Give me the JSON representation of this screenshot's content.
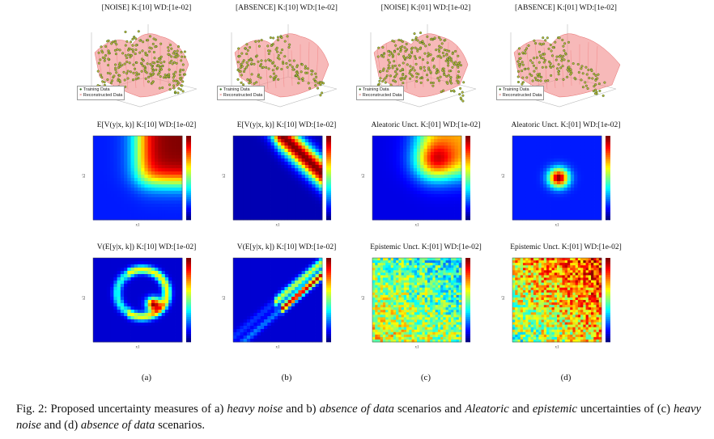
{
  "columns": [
    {
      "id": "a",
      "titles": [
        "[NOISE] K:[10] WD:[1e-02]",
        "E[V(y|x, k)] K:[10] WD:[1e-02]",
        "V(E[y|x, k]) K:[10] WD:[1e-02]"
      ],
      "label": "(a)"
    },
    {
      "id": "b",
      "titles": [
        "[ABSENCE] K:[10] WD:[1e-02]",
        "E[V(y|x, k)] K:[10] WD:[1e-02]",
        "V(E[y|x, k]) K:[10] WD:[1e-02]"
      ],
      "label": "(b)"
    },
    {
      "id": "c",
      "titles": [
        "[NOISE] K:[01] WD:[1e-02]",
        "Aleatoric Unct. K:[01] WD:[1e-02]",
        "Epistemic Unct. K:[01] WD:[1e-02]"
      ],
      "label": "(c)"
    },
    {
      "id": "d",
      "titles": [
        "[ABSENCE] K:[01] WD:[1e-02]",
        "Aleatoric Unct. K:[01] WD:[1e-02]",
        "Epistemic Unct. K:[01] WD:[1e-02]"
      ],
      "label": "(d)"
    }
  ],
  "legend": {
    "training": "Training Data",
    "reconstructed": "Reconstructed Data"
  },
  "axes": {
    "x": "x1",
    "y": "x2"
  },
  "caption": {
    "p1": "Fig. 2: Proposed uncertainty measures of a) ",
    "e1": "heavy noise",
    "p2": " and b) ",
    "e2": "absence of data",
    "p3": " scenarios and ",
    "e3": "Aleatoric",
    "p4": " and ",
    "e4": "epistemic",
    "p5": " uncertainties of (c) ",
    "e5": "heavy noise",
    "p6": " and (d) ",
    "e6": "absence of data",
    "p7": " scenarios."
  },
  "colors": {
    "training": "#2d6a1f",
    "reconstructed": "#f08080"
  }
}
